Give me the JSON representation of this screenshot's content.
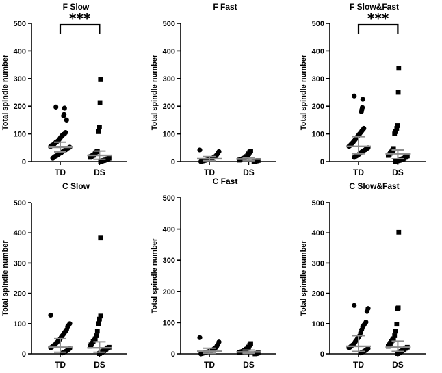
{
  "chart_data": [
    {
      "type": "scatter",
      "title": "F Slow",
      "ylabel": "Total spindle number",
      "ylim": [
        0,
        500
      ],
      "yticks": [
        0,
        100,
        200,
        300,
        400,
        500
      ],
      "categories": [
        "TD",
        "DS"
      ],
      "significance": "***",
      "series": [
        {
          "name": "TD",
          "marker": "circle",
          "values": [
            197,
            193,
            170,
            165,
            150,
            105,
            100,
            98,
            95,
            90,
            85,
            80,
            75,
            72,
            70,
            66,
            62,
            60,
            58,
            55,
            52,
            50,
            48,
            45,
            42,
            40,
            38,
            35,
            32,
            30,
            28,
            25,
            22,
            20,
            18,
            15,
            12
          ],
          "mean": 52,
          "sd_low": 35,
          "sd_high": 70
        },
        {
          "name": "DS",
          "marker": "square",
          "values": [
            296,
            213,
            125,
            108,
            38,
            35,
            30,
            25,
            22,
            20,
            18,
            15,
            12,
            10,
            8,
            6,
            5,
            4,
            3,
            2,
            1
          ],
          "mean": 22,
          "sd_low": 8,
          "sd_high": 38
        }
      ]
    },
    {
      "type": "scatter",
      "title": "F Fast",
      "ylabel": "Total spindle number",
      "ylim": [
        0,
        500
      ],
      "yticks": [
        0,
        100,
        200,
        300,
        400,
        500
      ],
      "categories": [
        "TD",
        "DS"
      ],
      "significance": "",
      "series": [
        {
          "name": "TD",
          "marker": "circle",
          "values": [
            42,
            36,
            30,
            25,
            20,
            17,
            15,
            12,
            10,
            9,
            8,
            7,
            6,
            5,
            4,
            3,
            2,
            1,
            0
          ],
          "mean": 10,
          "sd_low": 3,
          "sd_high": 18
        },
        {
          "name": "DS",
          "marker": "square",
          "values": [
            38,
            34,
            28,
            22,
            18,
            15,
            12,
            10,
            8,
            7,
            6,
            5,
            4,
            3,
            2,
            1,
            0
          ],
          "mean": 9,
          "sd_low": 3,
          "sd_high": 15
        }
      ]
    },
    {
      "type": "scatter",
      "title": "F Slow&Fast",
      "ylabel": "Total spindle number",
      "ylim": [
        0,
        500
      ],
      "yticks": [
        0,
        100,
        200,
        300,
        400,
        500
      ],
      "categories": [
        "TD",
        "DS"
      ],
      "significance": "***",
      "series": [
        {
          "name": "TD",
          "marker": "circle",
          "values": [
            237,
            225,
            195,
            188,
            180,
            120,
            115,
            110,
            105,
            100,
            95,
            90,
            85,
            80,
            75,
            70,
            66,
            62,
            58,
            55,
            50,
            47,
            45,
            42,
            40,
            38,
            35,
            32,
            28,
            25,
            22,
            20,
            18,
            15
          ],
          "mean": 55,
          "sd_low": 28,
          "sd_high": 90
        },
        {
          "name": "DS",
          "marker": "square",
          "values": [
            337,
            250,
            130,
            120,
            108,
            100,
            45,
            40,
            35,
            30,
            25,
            22,
            20,
            18,
            15,
            12,
            10,
            8,
            6,
            5,
            4,
            3,
            2,
            1
          ],
          "mean": 28,
          "sd_low": 10,
          "sd_high": 42
        }
      ]
    },
    {
      "type": "scatter",
      "title": "C Slow",
      "ylabel": "Total spindle number",
      "ylim": [
        0,
        500
      ],
      "yticks": [
        0,
        100,
        200,
        300,
        400,
        500
      ],
      "categories": [
        "TD",
        "DS"
      ],
      "significance": "",
      "series": [
        {
          "name": "TD",
          "marker": "circle",
          "values": [
            128,
            100,
            95,
            90,
            80,
            75,
            70,
            65,
            60,
            55,
            50,
            45,
            42,
            38,
            35,
            30,
            28,
            25,
            22,
            20,
            18,
            15,
            12,
            10,
            8,
            6,
            5,
            3
          ],
          "mean": 22,
          "sd_low": 5,
          "sd_high": 50
        },
        {
          "name": "DS",
          "marker": "square",
          "values": [
            383,
            125,
            115,
            100,
            75,
            60,
            50,
            45,
            40,
            35,
            30,
            25,
            22,
            20,
            18,
            15,
            12,
            10,
            8,
            5,
            3,
            1
          ],
          "mean": 20,
          "sd_low": 5,
          "sd_high": 40
        }
      ]
    },
    {
      "type": "scatter",
      "title": "C Fast",
      "ylabel": "Total spindle number",
      "ylim": [
        0,
        500
      ],
      "yticks": [
        0,
        100,
        200,
        300,
        400,
        500
      ],
      "categories": [
        "TD",
        "DS"
      ],
      "significance": "",
      "series": [
        {
          "name": "TD",
          "marker": "circle",
          "values": [
            52,
            38,
            30,
            25,
            20,
            18,
            15,
            12,
            10,
            9,
            8,
            7,
            6,
            5,
            4,
            3,
            2,
            1,
            0
          ],
          "mean": 8,
          "sd_low": 2,
          "sd_high": 18
        },
        {
          "name": "DS",
          "marker": "square",
          "values": [
            33,
            28,
            22,
            18,
            15,
            12,
            10,
            8,
            7,
            6,
            5,
            4,
            3,
            2,
            1,
            0
          ],
          "mean": 6,
          "sd_low": 2,
          "sd_high": 12
        }
      ]
    },
    {
      "type": "scatter",
      "title": "C Slow&Fast",
      "ylabel": "Total spindle number",
      "ylim": [
        0,
        500
      ],
      "yticks": [
        0,
        100,
        200,
        300,
        400,
        500
      ],
      "categories": [
        "TD",
        "DS"
      ],
      "significance": "",
      "series": [
        {
          "name": "TD",
          "marker": "circle",
          "values": [
            160,
            150,
            140,
            105,
            100,
            95,
            90,
            80,
            70,
            60,
            55,
            50,
            45,
            40,
            35,
            30,
            28,
            25,
            22,
            20,
            18,
            15,
            12,
            10,
            8,
            6,
            5,
            3
          ],
          "mean": 25,
          "sd_low": 8,
          "sd_high": 60
        },
        {
          "name": "DS",
          "marker": "square",
          "values": [
            402,
            152,
            150,
            98,
            75,
            60,
            50,
            45,
            40,
            35,
            30,
            25,
            22,
            20,
            18,
            15,
            12,
            10,
            8,
            5,
            3,
            1
          ],
          "mean": 22,
          "sd_low": 8,
          "sd_high": 42
        }
      ]
    }
  ]
}
